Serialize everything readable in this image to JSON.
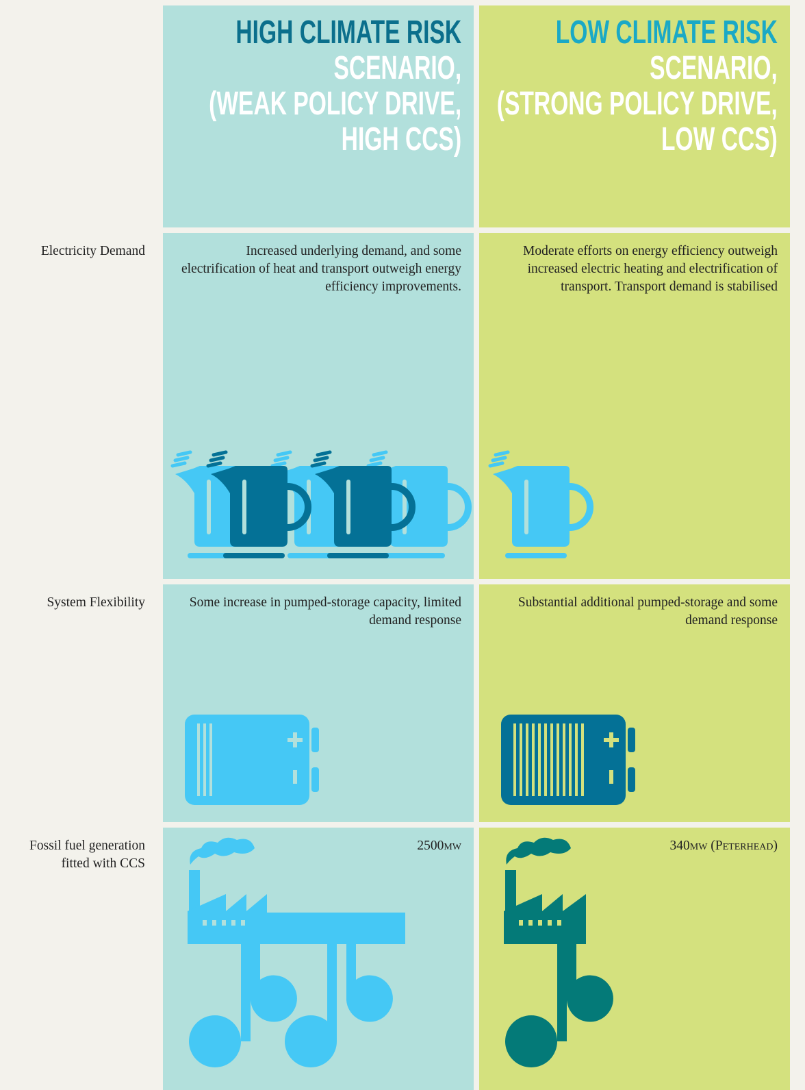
{
  "header": {
    "columns": [
      {
        "title": "HIGH CLIMATE RISK",
        "lines": [
          "SCENARIO,",
          "(WEAK POLICY DRIVE,",
          "HIGH CCS)"
        ]
      },
      {
        "title": "LOW CLIMATE RISK",
        "lines": [
          "SCENARIO,",
          "(STRONG POLICY DRIVE,",
          "LOW CCS)"
        ]
      }
    ]
  },
  "rows": [
    {
      "label": "Electricity Demand",
      "cells": [
        "Increased underlying demand, and some electrification of heat and transport outweigh energy efficiency improvements.",
        "Moderate efforts on energy efficiency outweigh increased electric heating and electrification of transport. Transport demand is stabilised"
      ]
    },
    {
      "label": "System Flexibility",
      "cells": [
        "Some increase in pumped-storage capacity, limited demand response",
        "Substantial additional pumped-storage and some demand response"
      ]
    },
    {
      "label": "Fossil fuel generation fitted with CCS",
      "cells": [
        "2500mw",
        "340mw (Peterhead)"
      ]
    }
  ]
}
